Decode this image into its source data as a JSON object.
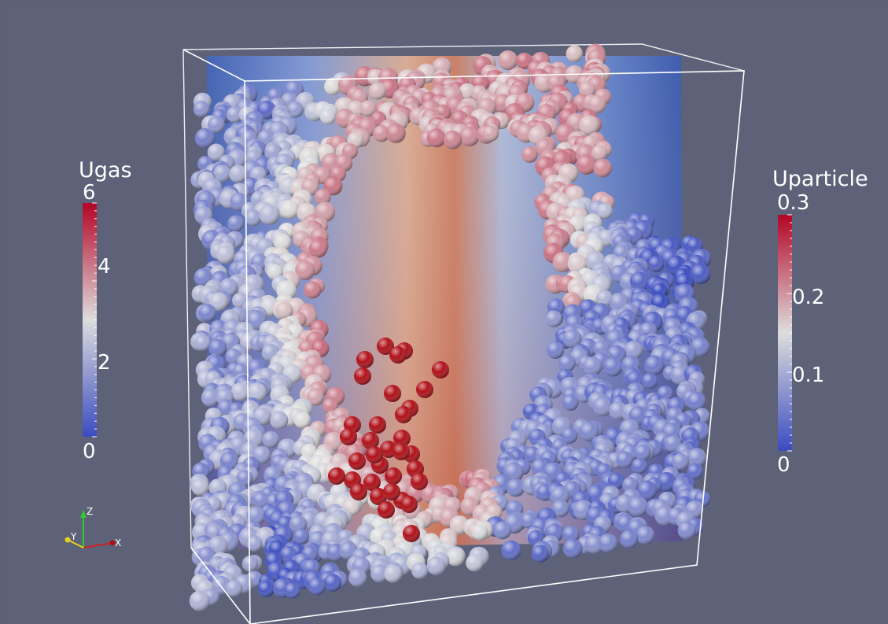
{
  "colormap": {
    "cold": "#3b4cc0",
    "mid": "#dddddd",
    "hot": "#b40426"
  },
  "scene": {
    "background": "#5e6279",
    "outline_color": "#ffffff",
    "high_velocity_particle_color": "#b01018"
  },
  "legend_left": {
    "title": "Ugas",
    "ticks": [
      "6",
      "4",
      "2",
      "0"
    ]
  },
  "legend_right": {
    "title": "Uparticle",
    "ticks": [
      "0.3",
      "0.2",
      "0.1",
      "0"
    ]
  },
  "orientation_axes": {
    "x_label": "X",
    "y_label": "Y",
    "z_label": "Z",
    "x_color": "#d02020",
    "y_color": "#e6d21e",
    "z_color": "#2ecc2e"
  }
}
